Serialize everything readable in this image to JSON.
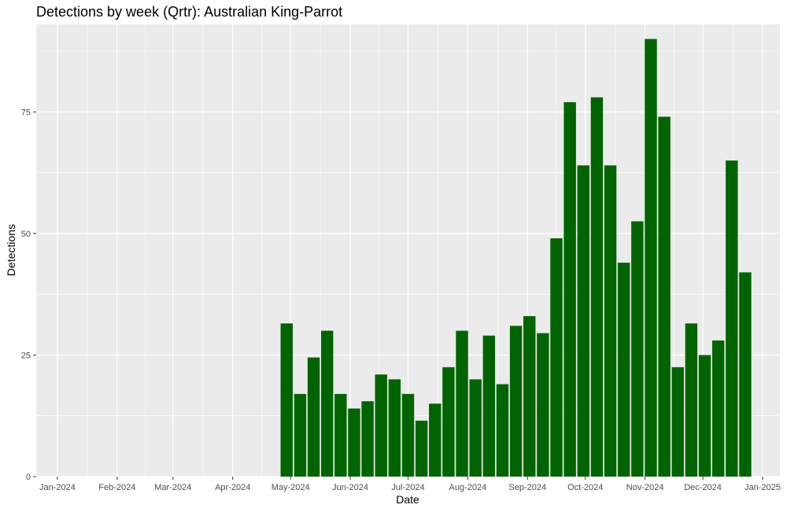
{
  "chart_data": {
    "type": "bar",
    "title": "Detections by week (Qrtr): Australian King-Parrot",
    "xlabel": "Date",
    "ylabel": "Detections",
    "x_ticks": [
      "Jan-2024",
      "Feb-2024",
      "Mar-2024",
      "Apr-2024",
      "May-2024",
      "Jun-2024",
      "Jul-2024",
      "Aug-2024",
      "Sep-2024",
      "Oct-2024",
      "Nov-2024",
      "Dec-2024",
      "Jan-2025"
    ],
    "y_ticks": [
      0,
      25,
      50,
      75
    ],
    "ylim": [
      0,
      93
    ],
    "xlim": [
      "2023-12-21",
      "2025-01-10"
    ],
    "grid": true,
    "bar_color": "#006400",
    "panel_color": "#ebebeb",
    "weeks": [
      "2024-04-29",
      "2024-05-06",
      "2024-05-13",
      "2024-05-20",
      "2024-05-27",
      "2024-06-03",
      "2024-06-10",
      "2024-06-17",
      "2024-06-24",
      "2024-07-01",
      "2024-07-08",
      "2024-07-15",
      "2024-07-22",
      "2024-07-29",
      "2024-08-05",
      "2024-08-12",
      "2024-08-19",
      "2024-08-26",
      "2024-09-02",
      "2024-09-09",
      "2024-09-16",
      "2024-09-23",
      "2024-09-30",
      "2024-10-07",
      "2024-10-14",
      "2024-10-21",
      "2024-10-28",
      "2024-11-04",
      "2024-11-11",
      "2024-11-18",
      "2024-11-25",
      "2024-12-02",
      "2024-12-09",
      "2024-12-16",
      "2024-12-23"
    ],
    "values": [
      31.5,
      17,
      24.5,
      30,
      17,
      14,
      15.5,
      21,
      20,
      17,
      11.5,
      15,
      22.5,
      30,
      20,
      29,
      19,
      31,
      33,
      29.5,
      49,
      77,
      64,
      78,
      64,
      44,
      52.5,
      90,
      74,
      22.5,
      31.5,
      25,
      28,
      65,
      42
    ]
  }
}
